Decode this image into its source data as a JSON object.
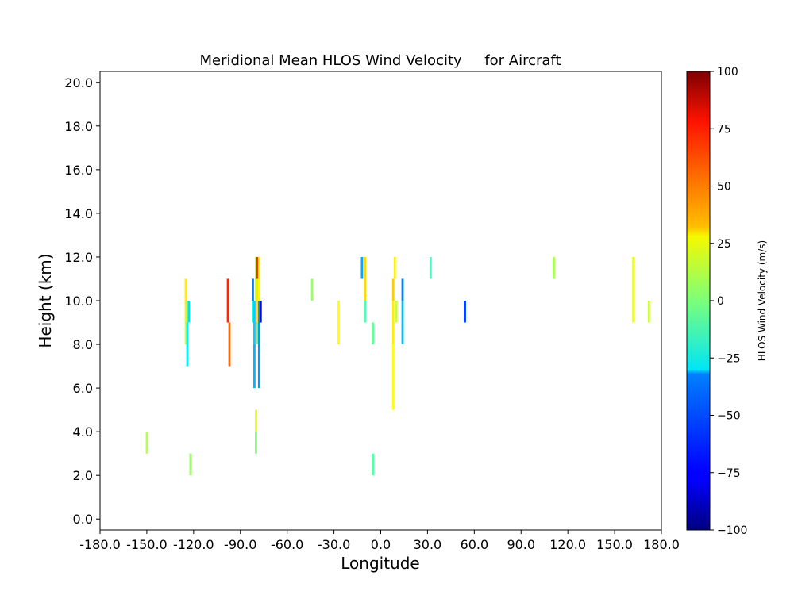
{
  "chart_data": {
    "type": "heatmap",
    "title": "Meridional Mean HLOS Wind Velocity     for Aircraft",
    "xlabel": "Longitude",
    "ylabel": "Height (km)",
    "xlim": [
      -180,
      180
    ],
    "ylim": [
      -0.5,
      20.5
    ],
    "xticks": [
      -180,
      -150,
      -120,
      -90,
      -60,
      -30,
      0,
      30,
      60,
      90,
      120,
      150,
      180
    ],
    "xtick_labels": [
      "-180.0",
      "-150.0",
      "-120.0",
      "-90.0",
      "-60.0",
      "-30.0",
      "0.0",
      "30.0",
      "60.0",
      "90.0",
      "120.0",
      "150.0",
      "180.0"
    ],
    "yticks": [
      0,
      2,
      4,
      6,
      8,
      10,
      12,
      14,
      16,
      18,
      20
    ],
    "ytick_labels": [
      "0.0",
      "2.0",
      "4.0",
      "6.0",
      "8.0",
      "10.0",
      "12.0",
      "14.0",
      "16.0",
      "18.0",
      "20.0"
    ],
    "colorbar": {
      "label": "HLOS Wind Velocity (m/s)",
      "range": [
        -100,
        100
      ],
      "ticks": [
        -100,
        -75,
        -50,
        -25,
        0,
        25,
        50,
        75,
        100
      ],
      "tick_labels": [
        "−100",
        "−75",
        "−50",
        "−25",
        "0",
        "25",
        "50",
        "75",
        "100"
      ],
      "colormap": "jet"
    },
    "points": [
      {
        "lon": -150,
        "h0": 3,
        "h1": 4,
        "v": 10
      },
      {
        "lon": -122,
        "h0": 2,
        "h1": 3,
        "v": 5
      },
      {
        "lon": -125,
        "h0": 9,
        "h1": 11,
        "v": 28
      },
      {
        "lon": -125,
        "h0": 8,
        "h1": 9,
        "v": 18
      },
      {
        "lon": -124,
        "h0": 9,
        "h1": 10,
        "v": 2
      },
      {
        "lon": -124,
        "h0": 7,
        "h1": 9,
        "v": -28
      },
      {
        "lon": -123,
        "h0": 9,
        "h1": 10,
        "v": -32
      },
      {
        "lon": -98,
        "h0": 9,
        "h1": 11,
        "v": 68
      },
      {
        "lon": -97,
        "h0": 7,
        "h1": 9,
        "v": 55
      },
      {
        "lon": -82,
        "h0": 10,
        "h1": 11,
        "v": -50
      },
      {
        "lon": -82,
        "h0": 9,
        "h1": 10,
        "v": -22
      },
      {
        "lon": -81,
        "h0": 8,
        "h1": 10,
        "v": -35
      },
      {
        "lon": -81,
        "h0": 6,
        "h1": 8,
        "v": -40
      },
      {
        "lon": -80,
        "h0": 10,
        "h1": 12,
        "v": 15
      },
      {
        "lon": -80,
        "h0": 3,
        "h1": 5,
        "v": 0
      },
      {
        "lon": -80,
        "h0": 4,
        "h1": 5,
        "v": 20
      },
      {
        "lon": -79,
        "h0": 11,
        "h1": 12,
        "v": 68
      },
      {
        "lon": -79,
        "h0": 9,
        "h1": 11,
        "v": 30
      },
      {
        "lon": -79,
        "h0": 8,
        "h1": 9,
        "v": -8
      },
      {
        "lon": -78,
        "h0": 6,
        "h1": 10,
        "v": -45
      },
      {
        "lon": -78,
        "h0": 10,
        "h1": 12,
        "v": 22
      },
      {
        "lon": -77,
        "h0": 9,
        "h1": 10,
        "v": -85
      },
      {
        "lon": -44,
        "h0": 10,
        "h1": 11,
        "v": 5
      },
      {
        "lon": -27,
        "h0": 8,
        "h1": 10,
        "v": 25
      },
      {
        "lon": -12,
        "h0": 11,
        "h1": 12,
        "v": -42
      },
      {
        "lon": -10,
        "h0": 10,
        "h1": 12,
        "v": 32
      },
      {
        "lon": -10,
        "h0": 9,
        "h1": 10,
        "v": -10
      },
      {
        "lon": -5,
        "h0": 8,
        "h1": 9,
        "v": -5
      },
      {
        "lon": -5,
        "h0": 2,
        "h1": 3,
        "v": -8
      },
      {
        "lon": 8,
        "h0": 10,
        "h1": 11,
        "v": 35
      },
      {
        "lon": 8,
        "h0": 8,
        "h1": 10,
        "v": 28
      },
      {
        "lon": 8,
        "h0": 5,
        "h1": 8,
        "v": 25
      },
      {
        "lon": 9,
        "h0": 11,
        "h1": 12,
        "v": 28
      },
      {
        "lon": 10,
        "h0": 9,
        "h1": 10,
        "v": 15
      },
      {
        "lon": 14,
        "h0": 10,
        "h1": 11,
        "v": -50
      },
      {
        "lon": 14,
        "h0": 8,
        "h1": 10,
        "v": -38
      },
      {
        "lon": 32,
        "h0": 11,
        "h1": 12,
        "v": -12
      },
      {
        "lon": 54,
        "h0": 9,
        "h1": 10,
        "v": -62
      },
      {
        "lon": 111,
        "h0": 11,
        "h1": 12,
        "v": 8
      },
      {
        "lon": 162,
        "h0": 9,
        "h1": 12,
        "v": 20
      },
      {
        "lon": 172,
        "h0": 9,
        "h1": 10,
        "v": 15
      }
    ]
  }
}
